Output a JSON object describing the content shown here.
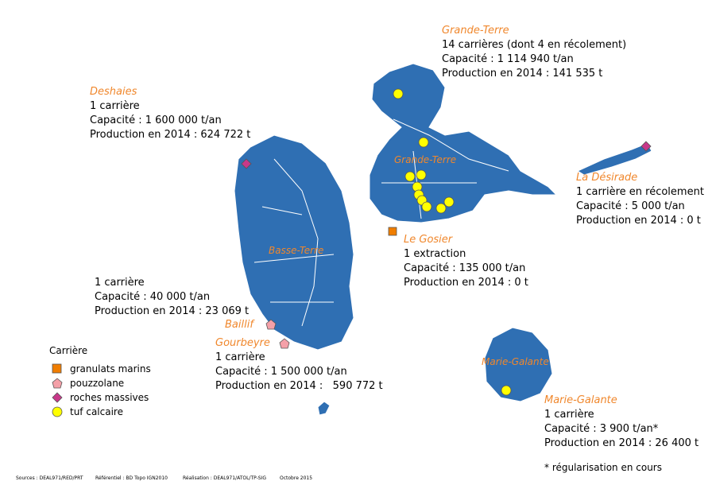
{
  "regions": [
    {
      "name": "Grande-Terre",
      "lines": [
        "14 carrières (dont 4 en récolement)",
        "Capacité : 1 114 940 t/an",
        "Production en 2014 : 141 535 t"
      ]
    },
    {
      "name": "Deshaies",
      "lines": [
        "1 carrière",
        "Capacité : 1 600 000 t/an",
        "Production en 2014 : 624 722 t"
      ]
    },
    {
      "name": "La Désirade",
      "lines": [
        "1 carrière en récolement",
        "Capacité : 5 000 t/an",
        "Production en 2014 : 0 t"
      ]
    },
    {
      "name": "Le Gosier",
      "lines": [
        "1 extraction",
        "Capacité : 135 000 t/an",
        "Production en 2014 : 0 t"
      ]
    },
    {
      "name": "Baillif",
      "lines": [
        "1 carrière",
        "Capacité : 40 000 t/an",
        "Production en 2014 : 23 069 t"
      ]
    },
    {
      "name": "Gourbeyre",
      "lines": [
        "1 carrière",
        "Capacité : 1 500 000 t/an",
        "Production en 2014 :   590 772 t"
      ]
    },
    {
      "name": "Marie-Galante",
      "lines": [
        "1 carrière",
        "Capacité : 3 900 t/an*",
        "Production en 2014 : 26 400 t"
      ]
    }
  ],
  "map_labels": [
    "Grande-Terre",
    "Basse-Terre",
    "Marie-Galante"
  ],
  "legend": {
    "title": "Carrière",
    "items": [
      "granulats marins",
      "pouzzolane",
      "roches massives",
      "tuf calcaire"
    ]
  },
  "note": "* régularisation en cours",
  "footer": [
    "Sources : DEAL971/RED/PRT",
    "Référentiel : BD Topo IGN2010",
    "Réalisation : DEAL971/ATOL/TP-SIG",
    "Octobre 2015"
  ]
}
